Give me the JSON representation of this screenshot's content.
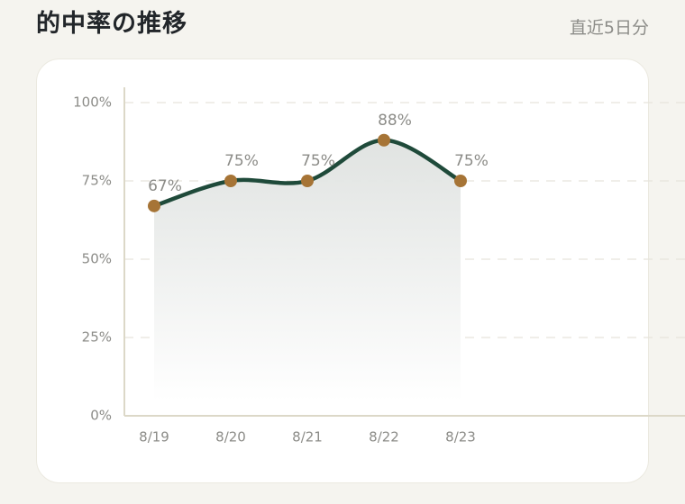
{
  "header": {
    "title": "的中率の推移",
    "subtitle": "直近5日分"
  },
  "chart_data": {
    "type": "line",
    "categories": [
      "8/19",
      "8/20",
      "8/21",
      "8/22",
      "8/23"
    ],
    "values": [
      67,
      75,
      75,
      88,
      75
    ],
    "value_labels": [
      "67%",
      "75%",
      "75%",
      "88%",
      "75%"
    ],
    "color": "#1f4a3a",
    "marker_color": "#a67436",
    "ylim": [
      0,
      100
    ],
    "yticks": [
      {
        "value": 0,
        "label": "0%"
      },
      {
        "value": 25,
        "label": "25%"
      },
      {
        "value": 50,
        "label": "50%"
      },
      {
        "value": 75,
        "label": "75%"
      },
      {
        "value": 100,
        "label": "100%"
      }
    ],
    "grid": true
  }
}
